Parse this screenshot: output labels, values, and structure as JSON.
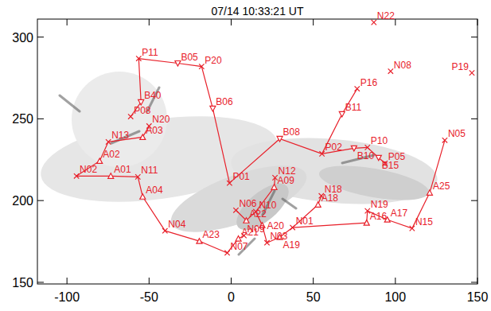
{
  "chart_data": {
    "type": "scatter",
    "title": "07/14 10:33:21 UT",
    "color": "#e8202a",
    "xlim": [
      -118,
      150
    ],
    "ylim": [
      149,
      311
    ],
    "xticks": [
      -100,
      -50,
      0,
      50,
      100,
      150
    ],
    "yticks": [
      150,
      200,
      250,
      300
    ],
    "series": [
      {
        "type": "scatter",
        "marker": "x",
        "labels": [
          "P11",
          "P20",
          "P08",
          "N20",
          "N13",
          "N02",
          "N11",
          "N04",
          "N07",
          "N09",
          "N06",
          "N10",
          "N12",
          "N03",
          "N01",
          "N18",
          "N19",
          "N15",
          "N05",
          "P01",
          "P02",
          "P16",
          "P10",
          "P05",
          "N08",
          "P19",
          "N22"
        ],
        "x": [
          -56.3,
          -18,
          -61.2,
          -50,
          -74.8,
          -94.2,
          -56.8,
          -40.3,
          -2.4,
          7.8,
          2.9,
          15,
          26.7,
          21.8,
          37.4,
          54.9,
          83,
          110.2,
          130.1,
          -1,
          55.3,
          76.7,
          83,
          93.7,
          97.1,
          146.6,
          86.9
        ],
        "values": [
          286.9,
          282,
          251.4,
          245.6,
          235.9,
          215,
          214.5,
          181.5,
          168,
          178.6,
          194.1,
          193.2,
          214,
          174.2,
          183.5,
          202.9,
          193.7,
          183,
          236.9,
          210.7,
          228.6,
          268.4,
          232.5,
          222.8,
          279.1,
          278.1,
          309
        ]
      },
      {
        "type": "scatter",
        "marker": "triangle-down",
        "labels": [
          "B05",
          "B06",
          "B40",
          "B08",
          "B11",
          "B10",
          "B15"
        ],
        "x": [
          -32.5,
          -11.2,
          -54.9,
          29.6,
          67.5,
          74.8,
          89.8
        ],
        "values": [
          284,
          256.3,
          260.2,
          237.8,
          252.9,
          232,
          226.2
        ]
      },
      {
        "type": "scatter",
        "marker": "triangle-up",
        "labels": [
          "A03",
          "A02",
          "A01",
          "A04",
          "A23",
          "A21",
          "A22",
          "A20",
          "A09",
          "A19",
          "A18",
          "A16",
          "A17",
          "A25"
        ],
        "x": [
          -53.9,
          -80.1,
          -73.3,
          -53.9,
          -19.4,
          4.4,
          9.2,
          18.9,
          26.2,
          29.6,
          52.9,
          82.5,
          95.1,
          120.9
        ],
        "values": [
          238.8,
          224.2,
          215,
          202.4,
          175.2,
          176.7,
          187.8,
          184.9,
          208.2,
          177.6,
          197.5,
          186.4,
          188.3,
          204.8
        ]
      },
      {
        "type": "line",
        "x": [
          -56.3,
          -54.9,
          -61.2
        ],
        "values": [
          286.9,
          260.2,
          251.4
        ]
      },
      {
        "type": "line",
        "x": [
          -56.3,
          -32.5,
          -18,
          -11.2,
          -1
        ],
        "values": [
          286.9,
          284,
          282,
          256.3,
          210.7
        ]
      },
      {
        "type": "line",
        "x": [
          -1,
          29.6,
          55.3
        ],
        "values": [
          210.7,
          237.8,
          228.6
        ]
      },
      {
        "type": "line",
        "x": [
          55.3,
          67.5,
          76.7
        ],
        "values": [
          228.6,
          252.9,
          268.4
        ]
      },
      {
        "type": "line",
        "x": [
          55.3,
          74.8,
          83
        ],
        "values": [
          228.6,
          232,
          232.5
        ]
      },
      {
        "type": "line",
        "x": [
          83,
          89.8,
          93.7
        ],
        "values": [
          232.5,
          226.2,
          222.8
        ]
      },
      {
        "type": "line",
        "x": [
          -94.2,
          -80.1,
          -74.8
        ],
        "values": [
          215,
          224.2,
          235.9
        ]
      },
      {
        "type": "line",
        "x": [
          -74.8,
          -53.9,
          -50
        ],
        "values": [
          235.9,
          238.8,
          245.6
        ]
      },
      {
        "type": "line",
        "x": [
          -94.2,
          -73.3,
          -56.8
        ],
        "values": [
          215,
          215,
          214.5
        ]
      },
      {
        "type": "line",
        "x": [
          -56.8,
          -53.9,
          -40.3
        ],
        "values": [
          214.5,
          202.4,
          181.5
        ]
      },
      {
        "type": "line",
        "x": [
          -40.3,
          -19.4,
          -2.4
        ],
        "values": [
          181.5,
          175.2,
          168
        ]
      },
      {
        "type": "line",
        "x": [
          -2.4,
          4.4,
          7.8
        ],
        "values": [
          168,
          176.7,
          178.6
        ]
      },
      {
        "type": "line",
        "x": [
          2.9,
          9.2,
          15
        ],
        "values": [
          194.1,
          187.8,
          193.2
        ]
      },
      {
        "type": "line",
        "x": [
          15,
          26.2,
          26.7
        ],
        "values": [
          193.2,
          208.2,
          214
        ]
      },
      {
        "type": "line",
        "x": [
          15,
          18.9,
          21.8
        ],
        "values": [
          193.2,
          184.9,
          174.2
        ]
      },
      {
        "type": "line",
        "x": [
          21.8,
          29.6,
          37.4
        ],
        "values": [
          174.2,
          177.6,
          183.5
        ]
      },
      {
        "type": "line",
        "x": [
          37.4,
          52.9,
          54.9
        ],
        "values": [
          183.5,
          197.5,
          202.9
        ]
      },
      {
        "type": "line",
        "x": [
          37.4,
          82.5,
          83
        ],
        "values": [
          183.5,
          186.4,
          193.7
        ]
      },
      {
        "type": "line",
        "x": [
          83,
          95.1,
          110.2
        ],
        "values": [
          193.7,
          188.3,
          183
        ]
      },
      {
        "type": "line",
        "x": [
          110.2,
          120.9,
          130.1
        ],
        "values": [
          183,
          204.8,
          236.9
        ]
      }
    ]
  }
}
